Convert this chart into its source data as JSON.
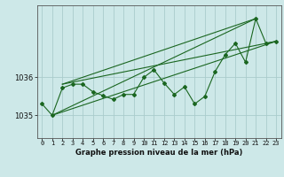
{
  "title": "Graphe pression niveau de la mer (hPa)",
  "background_color": "#cde8e8",
  "grid_color": "#aacccc",
  "line_color": "#1a6620",
  "x_ticks": [
    0,
    1,
    2,
    3,
    4,
    5,
    6,
    7,
    8,
    9,
    10,
    11,
    12,
    13,
    14,
    15,
    16,
    17,
    18,
    19,
    20,
    21,
    22,
    23
  ],
  "ylim": [
    1034.4,
    1037.9
  ],
  "yticks": [
    1035,
    1036
  ],
  "main_data": [
    1035.3,
    1035.0,
    1035.72,
    1035.82,
    1035.82,
    1035.62,
    1035.52,
    1035.42,
    1035.55,
    1035.55,
    1036.0,
    1036.2,
    1035.85,
    1035.55,
    1035.75,
    1035.3,
    1035.5,
    1036.15,
    1036.6,
    1036.9,
    1036.4,
    1037.55,
    1036.9,
    1036.95
  ],
  "trend1_x": [
    2,
    21
  ],
  "trend1_y": [
    1035.82,
    1037.55
  ],
  "trend2_x": [
    2,
    23
  ],
  "trend2_y": [
    1035.82,
    1036.95
  ],
  "trend3_x": [
    1,
    21
  ],
  "trend3_y": [
    1035.0,
    1037.55
  ],
  "trend4_x": [
    1,
    23
  ],
  "trend4_y": [
    1035.0,
    1036.95
  ],
  "title_fontsize": 6.0,
  "tick_fontsize": 5.0,
  "ytick_fontsize": 6.0
}
